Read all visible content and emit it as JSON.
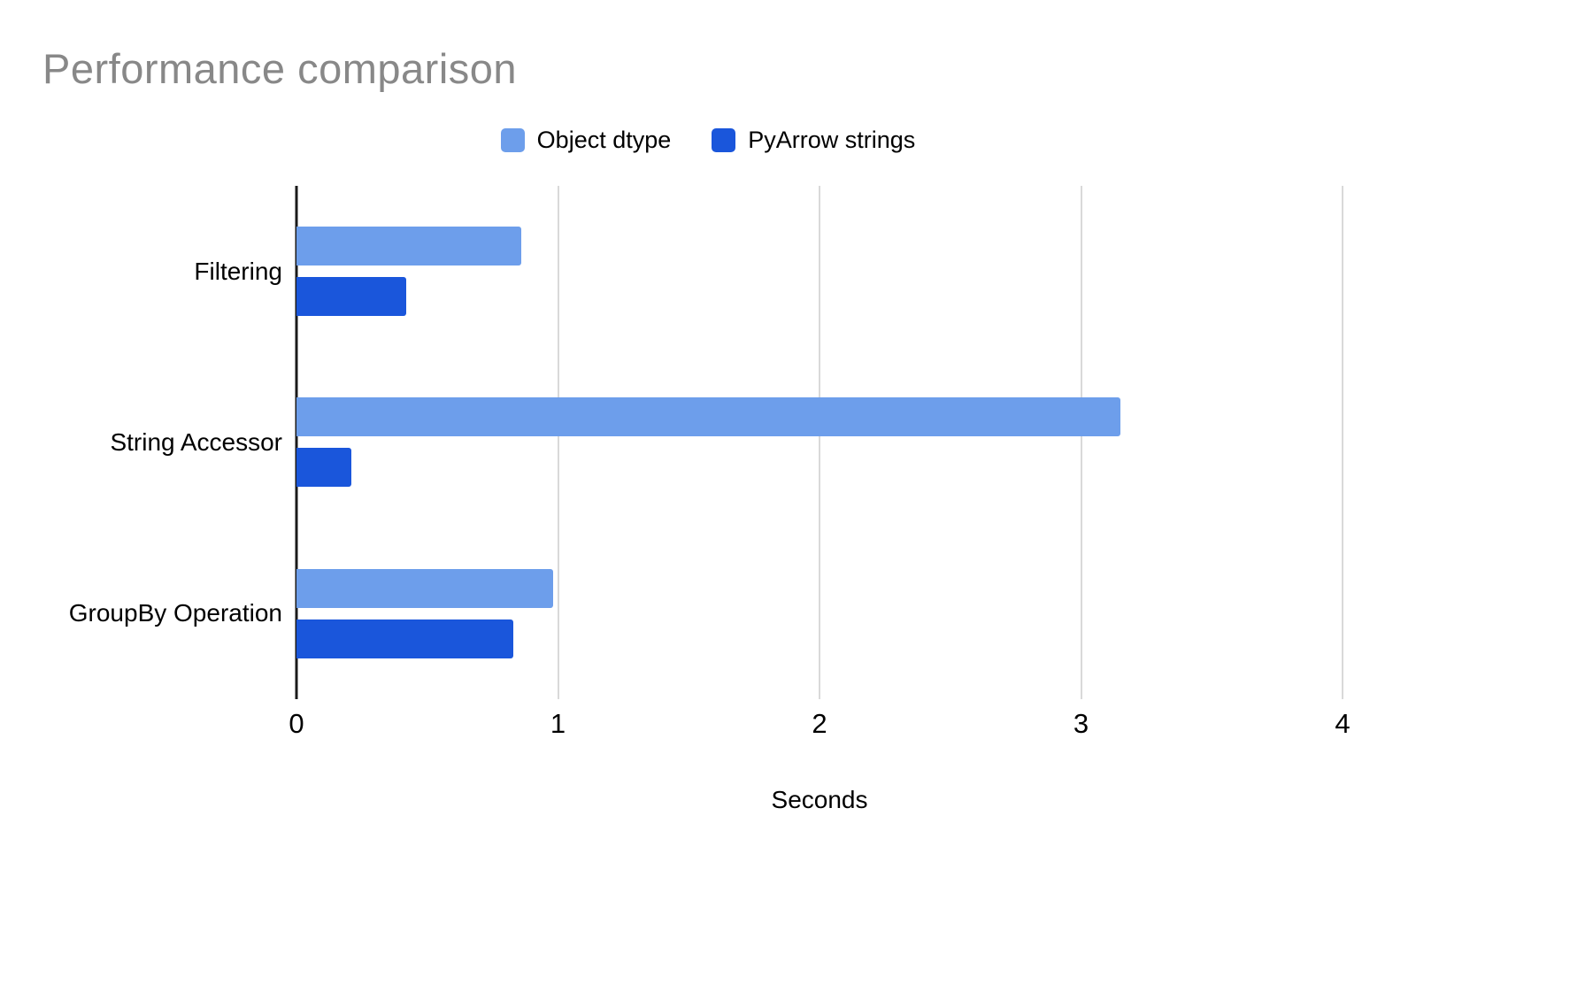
{
  "title": "Performance comparison",
  "legend": {
    "items": [
      {
        "label": "Object dtype",
        "color": "#6d9eeb"
      },
      {
        "label": "PyArrow strings",
        "color": "#1a56db"
      }
    ]
  },
  "colors": {
    "grid": "#d9d9d9",
    "axis": "#1a1a1a",
    "title_text": "#888888"
  },
  "chart_data": {
    "type": "bar",
    "orientation": "horizontal",
    "title": "Performance comparison",
    "categories": [
      "Filtering",
      "String Accessor",
      "GroupBy Operation"
    ],
    "series": [
      {
        "name": "Object dtype",
        "color": "#6d9eeb",
        "values": [
          0.86,
          3.15,
          0.98
        ]
      },
      {
        "name": "PyArrow strings",
        "color": "#1a56db",
        "values": [
          0.42,
          0.21,
          0.83
        ]
      }
    ],
    "xlabel": "Seconds",
    "ylabel": "",
    "xlim": [
      0,
      4
    ],
    "xticks": [
      0,
      1,
      2,
      3,
      4
    ],
    "grid": true,
    "legend_position": "top"
  }
}
